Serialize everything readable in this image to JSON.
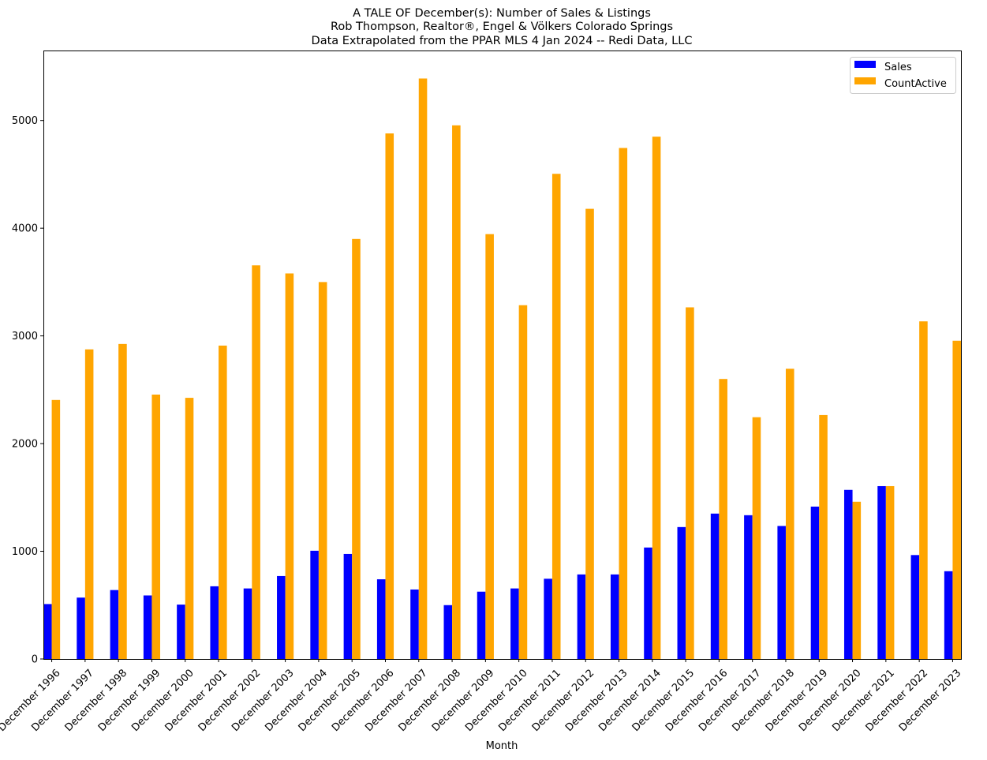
{
  "chart_data": {
    "type": "bar",
    "title_lines": [
      "A TALE OF December(s): Number of Sales & Listings",
      "Rob Thompson, Realtor®, Engel & Völkers Colorado Springs",
      "Data Extrapolated from the PPAR MLS 4 Jan 2024 -- Redi Data, LLC"
    ],
    "xlabel": "Month",
    "ylabel": "",
    "ylim": [
      0,
      5650
    ],
    "yticks": [
      0,
      1000,
      2000,
      3000,
      4000,
      5000
    ],
    "grid": false,
    "legend_position": "top-right",
    "categories": [
      "December 1996",
      "December 1997",
      "December 1998",
      "December 1999",
      "December 2000",
      "December 2001",
      "December 2002",
      "December 2003",
      "December 2004",
      "December 2005",
      "December 2006",
      "December 2007",
      "December 2008",
      "December 2009",
      "December 2010",
      "December 2011",
      "December 2012",
      "December 2013",
      "December 2014",
      "December 2015",
      "December 2016",
      "December 2017",
      "December 2018",
      "December 2019",
      "December 2020",
      "December 2021",
      "December 2022",
      "December 2023"
    ],
    "series": [
      {
        "name": "Sales",
        "color": "#0000ff",
        "values": [
          510,
          570,
          640,
          590,
          505,
          675,
          655,
          770,
          1005,
          975,
          740,
          645,
          500,
          625,
          655,
          745,
          785,
          785,
          1035,
          1225,
          1350,
          1335,
          1235,
          1415,
          1570,
          1605,
          965,
          815
        ]
      },
      {
        "name": "CountActive",
        "color": "#ffa500",
        "values": [
          2405,
          2875,
          2925,
          2455,
          2425,
          2910,
          3655,
          3580,
          3500,
          3900,
          4880,
          5390,
          4955,
          3945,
          3285,
          4505,
          4180,
          4745,
          4850,
          3265,
          2600,
          2245,
          2695,
          2265,
          1460,
          1605,
          3135,
          2955
        ]
      }
    ]
  }
}
